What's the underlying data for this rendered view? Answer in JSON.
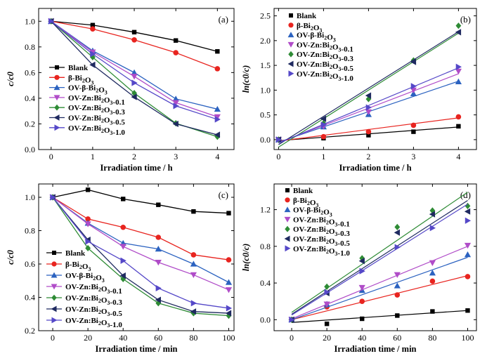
{
  "chart_data": [
    {
      "type": "line",
      "panel_label": "(a)",
      "xlabel": "Irradiation time / h",
      "ylabel": "c/c0",
      "xlim": [
        -0.3,
        4.4
      ],
      "ylim": [
        0.0,
        1.1
      ],
      "xticks": [
        0,
        1,
        2,
        3,
        4
      ],
      "xtick_labels": [
        "0",
        "1",
        "2",
        "3",
        "4"
      ],
      "yticks": [
        0.0,
        0.2,
        0.4,
        0.6,
        0.8,
        1.0
      ],
      "ytick_labels": [
        "0.0",
        "0.2",
        "0.4",
        "0.6",
        "0.8",
        "1.0"
      ],
      "legend_position": "bottom-left",
      "x": [
        0,
        1,
        2,
        3,
        4
      ],
      "series": [
        {
          "name": "Blank",
          "color": "#000000",
          "marker": "square",
          "values": [
            1.0,
            0.97,
            0.915,
            0.85,
            0.765
          ]
        },
        {
          "name": "β-Bi2O3",
          "color": "#e8241f",
          "marker": "circle",
          "values": [
            1.0,
            0.94,
            0.855,
            0.755,
            0.63
          ]
        },
        {
          "name": "OV-β-Bi2O3",
          "color": "#2b62c0",
          "marker": "triangle-up",
          "values": [
            1.0,
            0.77,
            0.6,
            0.395,
            0.315
          ]
        },
        {
          "name": "OV-Zn:Bi2O3-0.1",
          "color": "#b04cc8",
          "marker": "triangle-down",
          "values": [
            1.0,
            0.76,
            0.57,
            0.365,
            0.255
          ]
        },
        {
          "name": "OV-Zn:Bi2O3-0.3",
          "color": "#2e8b35",
          "marker": "diamond",
          "values": [
            1.0,
            0.72,
            0.44,
            0.205,
            0.1
          ]
        },
        {
          "name": "OV-Zn:Bi2O3-0.5",
          "color": "#1f2a60",
          "marker": "triangle-left",
          "values": [
            1.0,
            0.66,
            0.41,
            0.2,
            0.115
          ]
        },
        {
          "name": "OV-Zn:Bi2O3-1.0",
          "color": "#5548c8",
          "marker": "triangle-right",
          "values": [
            1.0,
            0.745,
            0.52,
            0.34,
            0.235
          ]
        }
      ]
    },
    {
      "type": "scatter",
      "panel_label": "(b)",
      "xlabel": "Irradiation time / h",
      "ylabel": "ln(c0/c)",
      "xlim": [
        -0.1,
        4.4
      ],
      "ylim": [
        -0.2,
        2.65
      ],
      "xticks": [
        0,
        1,
        2,
        3,
        4
      ],
      "xtick_labels": [
        "0",
        "1",
        "2",
        "3",
        "4"
      ],
      "yticks": [
        0.0,
        0.5,
        1.0,
        1.5,
        2.0,
        2.5
      ],
      "ytick_labels": [
        "0.0",
        "0.5",
        "1.0",
        "1.5",
        "2.0",
        "2.5"
      ],
      "legend_position": "top-left",
      "x": [
        0,
        1,
        2,
        3,
        4
      ],
      "series": [
        {
          "name": "Blank",
          "color": "#000000",
          "marker": "square",
          "values": [
            0.0,
            0.03,
            0.09,
            0.16,
            0.27
          ],
          "fit": [
            -0.02,
            0.255
          ]
        },
        {
          "name": "β-Bi2O3",
          "color": "#e8241f",
          "marker": "circle",
          "values": [
            0.0,
            0.06,
            0.16,
            0.29,
            0.46
          ],
          "fit": [
            -0.03,
            0.44
          ]
        },
        {
          "name": "OV-β-Bi2O3",
          "color": "#2b62c0",
          "marker": "triangle-up",
          "values": [
            0.0,
            0.26,
            0.51,
            0.93,
            1.17
          ],
          "fit": [
            -0.05,
            1.18
          ]
        },
        {
          "name": "OV-Zn:Bi2O3-0.1",
          "color": "#b04cc8",
          "marker": "triangle-down",
          "values": [
            0.0,
            0.27,
            0.56,
            1.0,
            1.38
          ],
          "fit": [
            -0.06,
            1.33
          ]
        },
        {
          "name": "OV-Zn:Bi2O3-0.3",
          "color": "#2e8b35",
          "marker": "diamond",
          "values": [
            0.0,
            0.33,
            0.82,
            1.6,
            2.3
          ],
          "fit": [
            -0.15,
            2.15
          ]
        },
        {
          "name": "OV-Zn:Bi2O3-0.5",
          "color": "#1f2a60",
          "marker": "triangle-left",
          "values": [
            0.0,
            0.42,
            0.89,
            1.57,
            2.17
          ],
          "fit": [
            -0.1,
            2.18
          ]
        },
        {
          "name": "OV-Zn:Bi2O3-1.0",
          "color": "#5548c8",
          "marker": "triangle-right",
          "values": [
            0.0,
            0.3,
            0.65,
            1.08,
            1.47
          ],
          "fit": [
            -0.07,
            1.45
          ]
        }
      ]
    },
    {
      "type": "line",
      "panel_label": "(c)",
      "xlabel": "Irradiation time / min",
      "ylabel": "c/c0",
      "xlim": [
        -8,
        103
      ],
      "ylim": [
        0.2,
        1.08
      ],
      "xticks": [
        0,
        20,
        40,
        60,
        80,
        100
      ],
      "xtick_labels": [
        "0",
        "20",
        "40",
        "60",
        "80",
        "100"
      ],
      "yticks": [
        0.2,
        0.4,
        0.6,
        0.8,
        1.0
      ],
      "ytick_labels": [
        "0.2",
        "0.4",
        "0.6",
        "0.8",
        "1.0"
      ],
      "legend_position": "bottom-left",
      "x": [
        0,
        20,
        40,
        60,
        80,
        100
      ],
      "series": [
        {
          "name": "Blank",
          "color": "#000000",
          "marker": "square",
          "values": [
            1.0,
            1.045,
            0.99,
            0.955,
            0.915,
            0.905
          ]
        },
        {
          "name": "β-Bi2O3",
          "color": "#e8241f",
          "marker": "circle",
          "values": [
            1.0,
            0.87,
            0.82,
            0.76,
            0.655,
            0.625
          ]
        },
        {
          "name": "OV-β-Bi2O3",
          "color": "#2b62c0",
          "marker": "triangle-up",
          "values": [
            1.0,
            0.845,
            0.725,
            0.69,
            0.6,
            0.49
          ]
        },
        {
          "name": "OV-Zn:Bi2O3-0.1",
          "color": "#b04cc8",
          "marker": "triangle-down",
          "values": [
            1.0,
            0.84,
            0.705,
            0.61,
            0.535,
            0.445
          ]
        },
        {
          "name": "OV-Zn:Bi2O3-0.3",
          "color": "#2e8b35",
          "marker": "diamond",
          "values": [
            1.0,
            0.695,
            0.51,
            0.365,
            0.305,
            0.29
          ]
        },
        {
          "name": "OV-Zn:Bi2O3-0.5",
          "color": "#1f2a60",
          "marker": "triangle-left",
          "values": [
            1.0,
            0.745,
            0.53,
            0.385,
            0.315,
            0.305
          ]
        },
        {
          "name": "OV-Zn:Bi2O3-1.0",
          "color": "#5548c8",
          "marker": "triangle-right",
          "values": [
            1.0,
            0.735,
            0.62,
            0.455,
            0.365,
            0.335
          ]
        }
      ]
    },
    {
      "type": "scatter",
      "panel_label": "(d)",
      "xlabel": "Irradiation time / min",
      "ylabel": "ln(c0/c)",
      "xlim": [
        -10,
        105
      ],
      "ylim": [
        -0.12,
        1.48
      ],
      "xticks": [
        0,
        20,
        40,
        60,
        80,
        100
      ],
      "xtick_labels": [
        "0",
        "20",
        "40",
        "60",
        "80",
        "100"
      ],
      "yticks": [
        0.0,
        0.4,
        0.8,
        1.2
      ],
      "ytick_labels": [
        "0.0",
        "0.4",
        "0.8",
        "1.2"
      ],
      "legend_position": "top-left",
      "x": [
        0,
        20,
        40,
        60,
        80,
        100
      ],
      "series": [
        {
          "name": "Blank",
          "color": "#000000",
          "marker": "square",
          "values": [
            0.0,
            -0.045,
            0.01,
            0.045,
            0.09,
            0.1
          ],
          "fit": [
            -0.03,
            0.1
          ]
        },
        {
          "name": "β-Bi2O3",
          "color": "#e8241f",
          "marker": "circle",
          "values": [
            0.0,
            0.14,
            0.2,
            0.27,
            0.42,
            0.47
          ],
          "fit": [
            0.0,
            0.48
          ]
        },
        {
          "name": "OV-β-Bi2O3",
          "color": "#2b62c0",
          "marker": "triangle-up",
          "values": [
            0.0,
            0.17,
            0.32,
            0.37,
            0.51,
            0.71
          ],
          "fit": [
            0.0,
            0.68
          ]
        },
        {
          "name": "OV-Zn:Bi2O3-0.1",
          "color": "#b04cc8",
          "marker": "triangle-down",
          "values": [
            0.0,
            0.17,
            0.35,
            0.49,
            0.62,
            0.81
          ],
          "fit": [
            0.01,
            0.8
          ]
        },
        {
          "name": "OV-Zn:Bi2O3-0.3",
          "color": "#2e8b35",
          "marker": "diamond",
          "values": [
            0.0,
            0.36,
            0.67,
            1.01,
            1.19,
            1.24
          ],
          "fit": [
            0.08,
            1.39
          ]
        },
        {
          "name": "OV-Zn:Bi2O3-0.5",
          "color": "#1f2a60",
          "marker": "triangle-left",
          "values": [
            0.0,
            0.29,
            0.64,
            0.95,
            1.15,
            1.18
          ],
          "fit": [
            0.06,
            1.3
          ]
        },
        {
          "name": "OV-Zn:Bi2O3-1.0",
          "color": "#5548c8",
          "marker": "triangle-right",
          "values": [
            0.0,
            0.3,
            0.53,
            0.79,
            1.0,
            1.08
          ],
          "fit": [
            0.05,
            1.26
          ]
        }
      ]
    }
  ]
}
